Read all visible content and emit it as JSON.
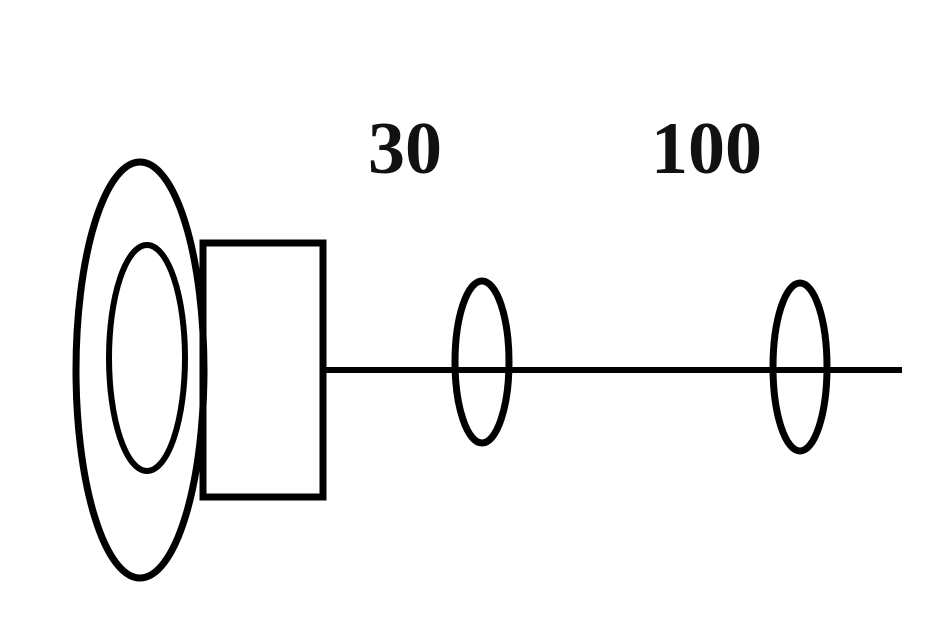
{
  "diagram": {
    "labels": {
      "left": "30",
      "right": "100"
    },
    "colors": {
      "stroke": "#000000",
      "background": "#ffffff"
    }
  }
}
